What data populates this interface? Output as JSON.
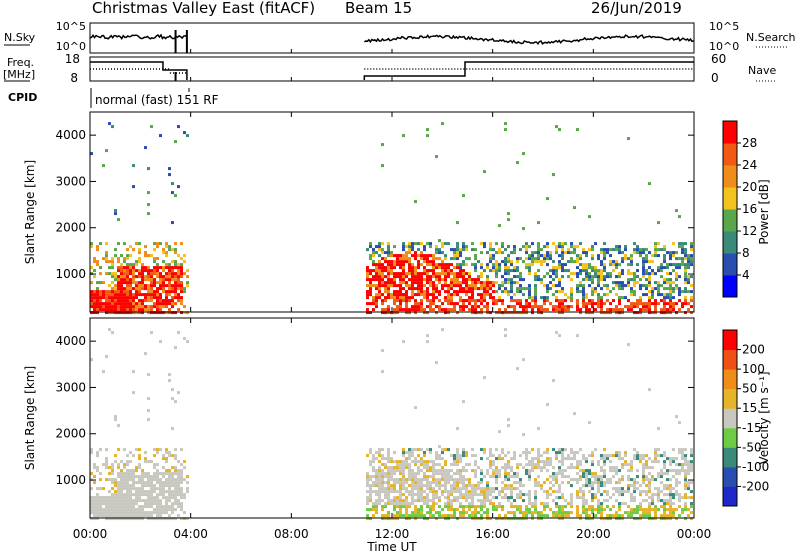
{
  "header": {
    "station": "Christmas Valley East (fitACF)",
    "beam": "Beam 15",
    "date": "26/Jun/2019"
  },
  "left_labels": {
    "nsky": "N.Sky",
    "freq": "Freq.",
    "freq_unit": "[MHz]",
    "cpid": "CPID"
  },
  "right_labels": {
    "nsearch": "N.Search",
    "nave": "Nave"
  },
  "cpid_text": "normal (fast) 151 RF",
  "nsky_ticks": [
    "10^5",
    "10^0"
  ],
  "nsearch_ticks": [
    "10^5",
    "10^0"
  ],
  "freq_ticks": [
    "18",
    "8"
  ],
  "nave_ticks": [
    "60",
    "0"
  ],
  "x_ticks": [
    "00:00",
    "04:00",
    "08:00",
    "12:00",
    "16:00",
    "20:00",
    "00:00"
  ],
  "x_label": "Time UT",
  "y_label": "Slant Range [km]",
  "y_ticks": [
    "1000",
    "2000",
    "3000",
    "4000"
  ],
  "power_colorbar": {
    "label": "Power [dB]",
    "ticks": [
      "4",
      "8",
      "12",
      "16",
      "20",
      "24",
      "28"
    ],
    "colors": [
      "#0000ff",
      "#2a4db0",
      "#3a8a7a",
      "#5aa64a",
      "#f2c21e",
      "#f08c1a",
      "#f05a14",
      "#ff0000"
    ]
  },
  "velocity_colorbar": {
    "label": "Velocity [m s⁻¹]",
    "ticks": [
      "200",
      "100",
      "50",
      "15",
      "-15",
      "-50",
      "-100",
      "-200"
    ],
    "colors": [
      "#1e28c8",
      "#2a4db0",
      "#3a8a7a",
      "#6dcc44",
      "#c8c8c0",
      "#e6b428",
      "#f08c1a",
      "#f05014",
      "#ff0000"
    ]
  },
  "chart_data": [
    {
      "type": "heatmap",
      "title": "Power",
      "x_range_hours": [
        0,
        24
      ],
      "y_range_km": [
        180,
        4500
      ],
      "colorbar_label": "Power [dB]",
      "z_range_db": [
        0,
        32
      ],
      "features": [
        {
          "t_start": 0.0,
          "t_end": 3.8,
          "range_km": [
            300,
            1700
          ],
          "dominant_db": 28
        },
        {
          "t_start": 10.9,
          "t_end": 24.0,
          "range_km": [
            200,
            1700
          ],
          "dominant_db": 20
        }
      ]
    },
    {
      "type": "heatmap",
      "title": "Velocity",
      "x_range_hours": [
        0,
        24
      ],
      "y_range_km": [
        180,
        4500
      ],
      "colorbar_label": "Velocity [m s⁻¹]",
      "z_range_ms": [
        -250,
        250
      ],
      "features": [
        {
          "t_start": 0.0,
          "t_end": 3.8,
          "range_km": [
            300,
            1700
          ],
          "dominant_ms": 0
        },
        {
          "t_start": 10.9,
          "t_end": 24.0,
          "range_km": [
            200,
            1700
          ],
          "dominant_ms": 0
        }
      ]
    }
  ]
}
